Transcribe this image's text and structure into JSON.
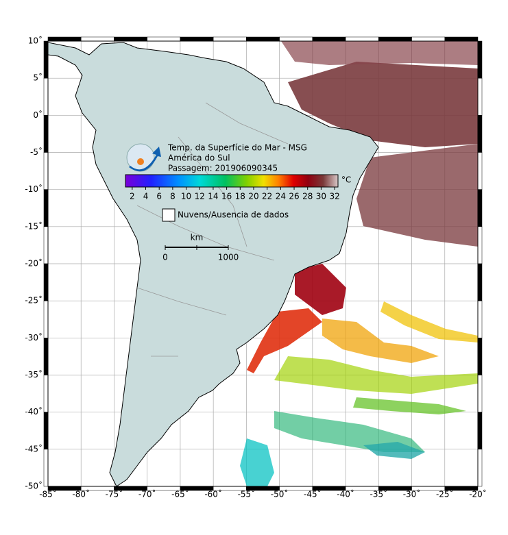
{
  "map": {
    "title_lines": [
      "Temp. da Superfície do Mar - MSG",
      "América do Sul",
      "Passagem: 201906090345"
    ],
    "colorbar": {
      "lim": [
        1,
        32.5
      ],
      "ticks": [
        2,
        4,
        6,
        8,
        10,
        12,
        14,
        16,
        18,
        20,
        22,
        24,
        26,
        28,
        30,
        32
      ],
      "unit": "°C"
    },
    "legend": "Nuvens/Ausencia de dados",
    "scale": {
      "unit": "km",
      "labels": [
        "0",
        "1000"
      ]
    },
    "lonlim": [
      -85,
      -20
    ],
    "latlim": [
      -50,
      10
    ],
    "lon_ticks": [
      {
        "value": -85,
        "label": "-85˚"
      },
      {
        "value": -80,
        "label": "-80˚"
      },
      {
        "value": -75,
        "label": "-75˚"
      },
      {
        "value": -70,
        "label": "-70˚"
      },
      {
        "value": -65,
        "label": "-65˚"
      },
      {
        "value": -60,
        "label": "-60˚"
      },
      {
        "value": -55,
        "label": "-55˚"
      },
      {
        "value": -50,
        "label": "-50˚"
      },
      {
        "value": -45,
        "label": "-45˚"
      },
      {
        "value": -40,
        "label": "-40˚"
      },
      {
        "value": -35,
        "label": "-35˚"
      },
      {
        "value": -30,
        "label": "-30˚"
      },
      {
        "value": -25,
        "label": "-25˚"
      },
      {
        "value": -20,
        "label": "-20˚"
      }
    ],
    "lat_ticks": [
      {
        "value": 10,
        "label": "10˚"
      },
      {
        "value": 5,
        "label": "5˚"
      },
      {
        "value": 0,
        "label": "0˚"
      },
      {
        "value": -5,
        "label": "-5˚"
      },
      {
        "value": -10,
        "label": "-10˚"
      },
      {
        "value": -15,
        "label": "-15˚"
      },
      {
        "value": -20,
        "label": "-20˚"
      },
      {
        "value": -25,
        "label": "-25˚"
      },
      {
        "value": -30,
        "label": "-30˚"
      },
      {
        "value": -35,
        "label": "-35˚"
      },
      {
        "value": -40,
        "label": "-40˚"
      },
      {
        "value": -45,
        "label": "-45˚"
      },
      {
        "value": -50,
        "label": "-50˚"
      }
    ]
  }
}
